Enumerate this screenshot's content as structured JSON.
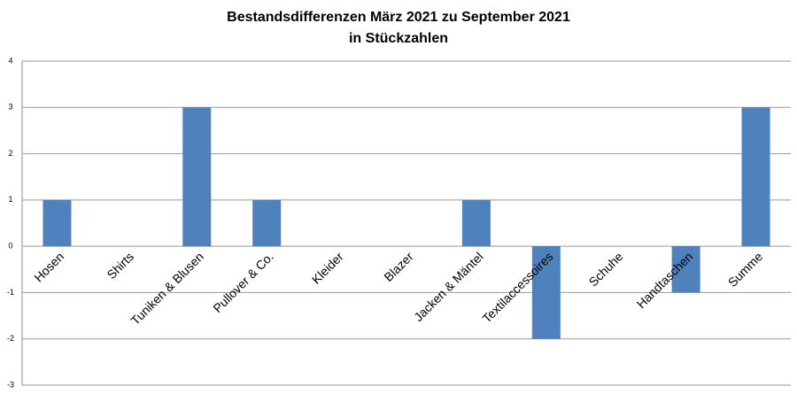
{
  "chart_data": {
    "type": "bar",
    "title": "Bestandsdifferenzen März 2021 zu September 2021",
    "subtitle": "in Stückzahlen",
    "categories": [
      "Hosen",
      "Shirts",
      "Tuniken & Blusen",
      "Pullover & Co.",
      "Kleider",
      "Blazer",
      "Jacken & Mäntel",
      "Textilaccessoires",
      "Schuhe",
      "Handtaschen",
      "Summe"
    ],
    "values": [
      1,
      0,
      3,
      1,
      0,
      0,
      1,
      -2,
      0,
      -1,
      3
    ],
    "color": "#4f81bd",
    "ylim": [
      -3,
      4
    ],
    "yticks": [
      -3,
      -2,
      -1,
      0,
      1,
      2,
      3,
      4
    ],
    "grid": true
  }
}
